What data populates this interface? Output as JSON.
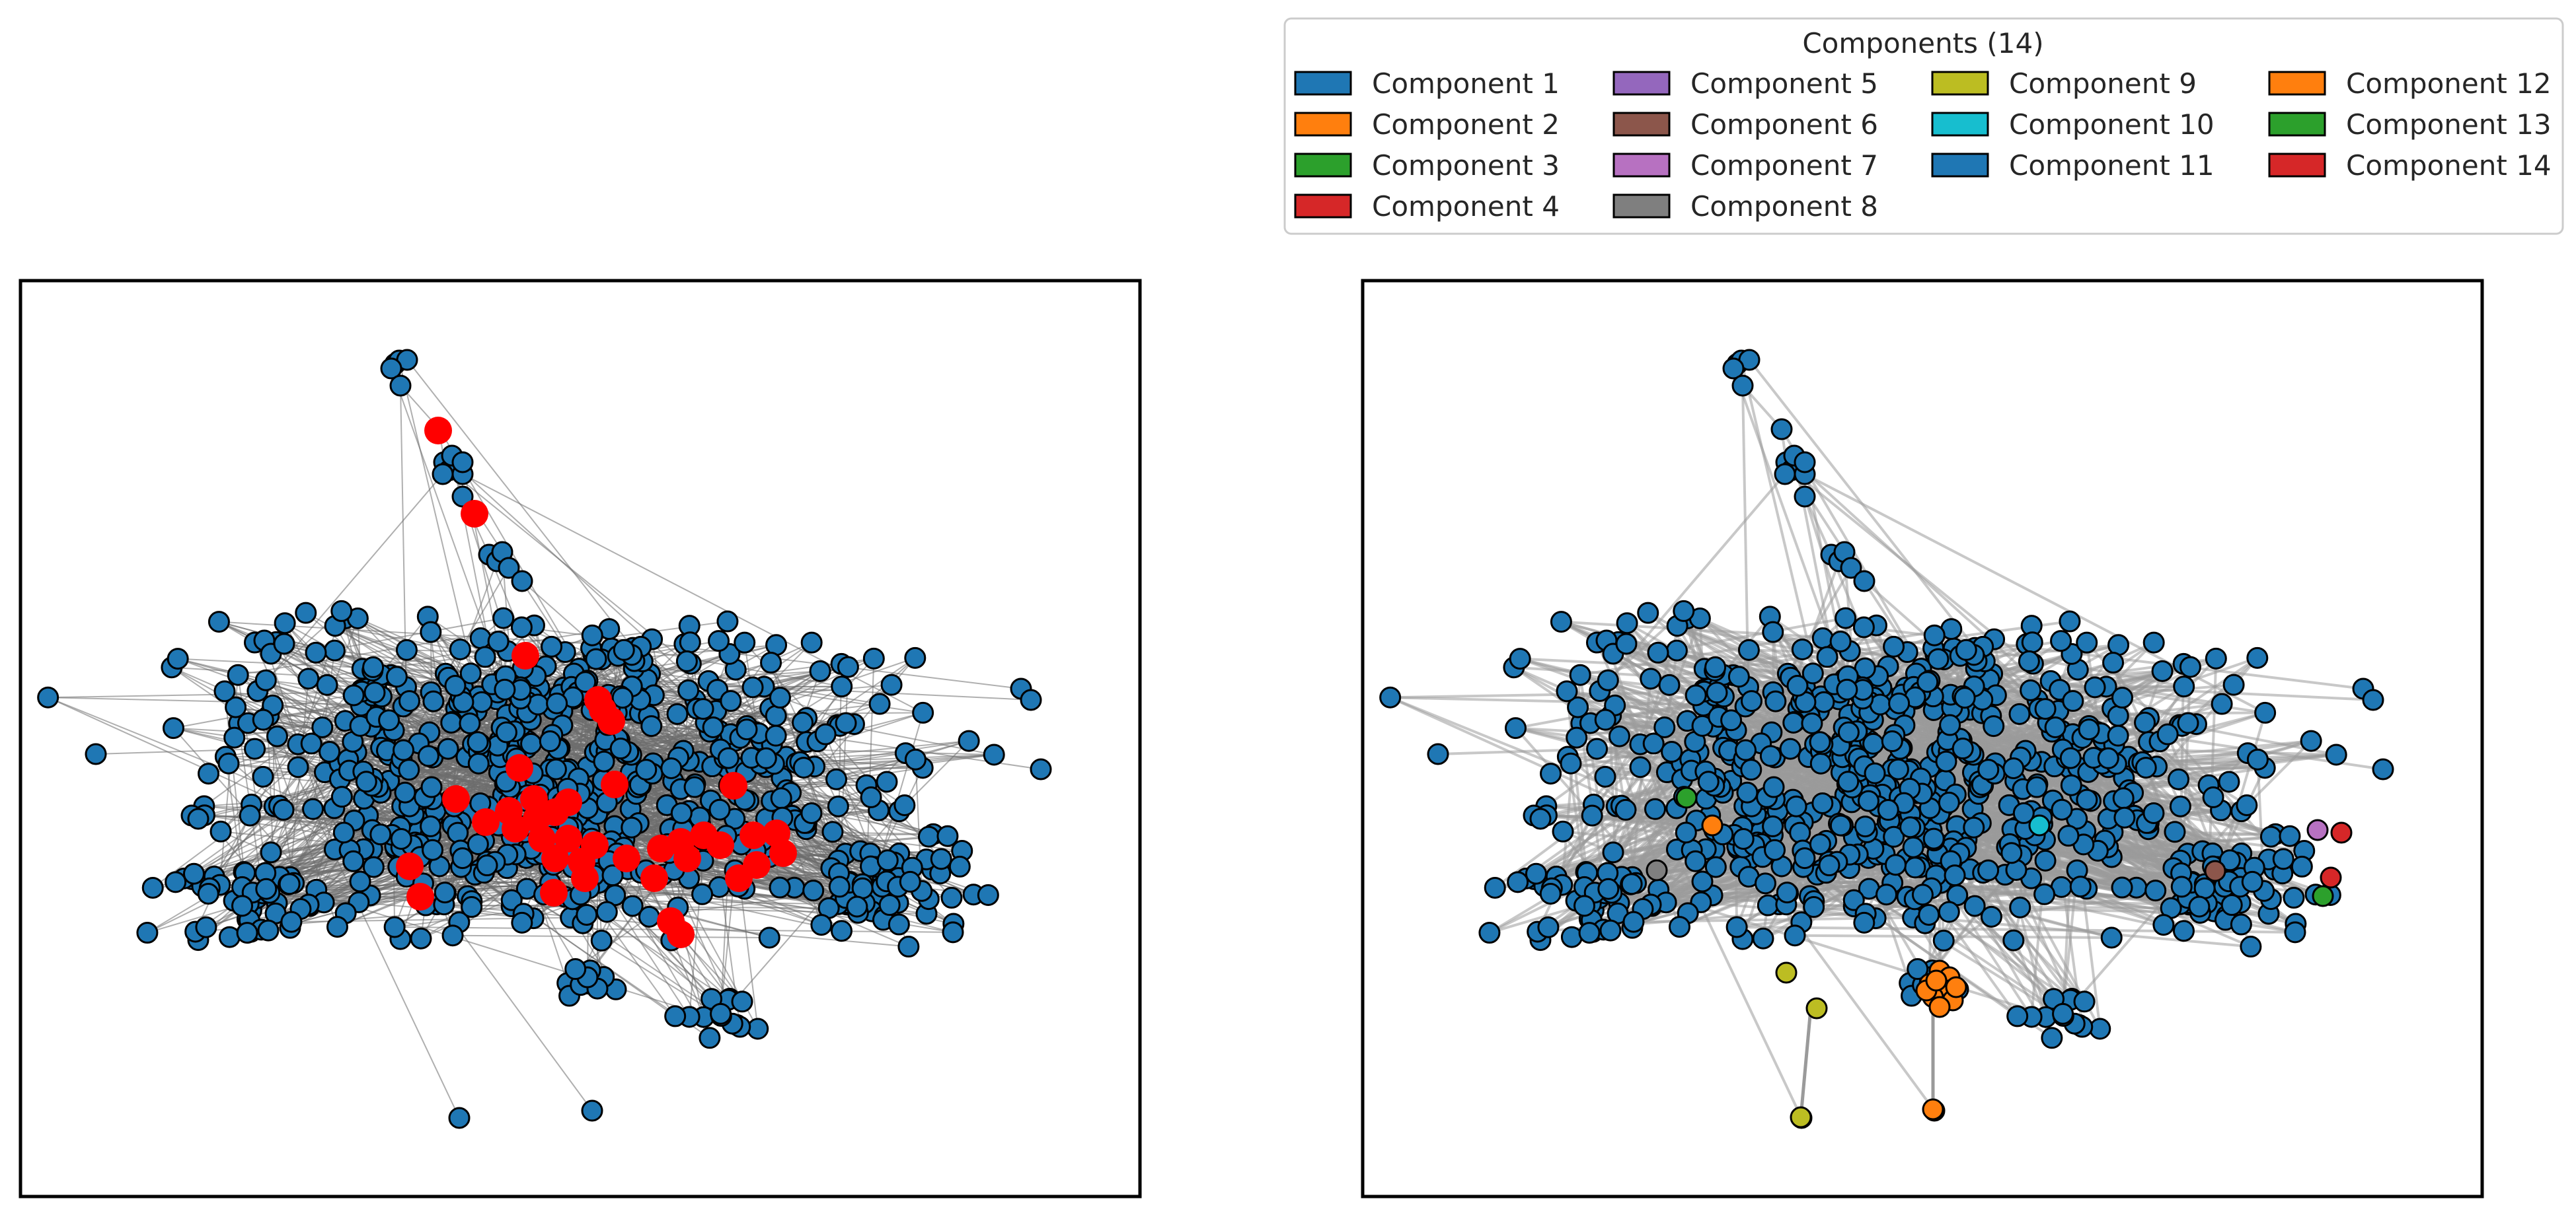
{
  "legend": {
    "title": "Components (14)",
    "items": [
      {
        "label": "Component 1",
        "color": "#1f77b4"
      },
      {
        "label": "Component 2",
        "color": "#ff7f0e"
      },
      {
        "label": "Component 3",
        "color": "#2ca02c"
      },
      {
        "label": "Component 4",
        "color": "#d62728"
      },
      {
        "label": "Component 5",
        "color": "#9467bd"
      },
      {
        "label": "Component 6",
        "color": "#8c564b"
      },
      {
        "label": "Component 7",
        "color": "#b771c1"
      },
      {
        "label": "Component 8",
        "color": "#7f7f7f"
      },
      {
        "label": "Component 9",
        "color": "#bcbd22"
      },
      {
        "label": "Component 10",
        "color": "#17becf"
      },
      {
        "label": "Component 11",
        "color": "#1f77b4"
      },
      {
        "label": "Component 12",
        "color": "#ff7f0e"
      },
      {
        "label": "Component 13",
        "color": "#2ca02c"
      },
      {
        "label": "Component 14",
        "color": "#d62728"
      }
    ]
  },
  "panels": [
    {
      "id": "left",
      "edge_color": "#6e6e6e",
      "highlight_color": "#ff0000"
    },
    {
      "id": "right",
      "edge_color": "#9a9a9a"
    }
  ],
  "colors": {
    "node_default": "#1f77b4",
    "node_outline": "#000000",
    "frame": "#000000"
  }
}
